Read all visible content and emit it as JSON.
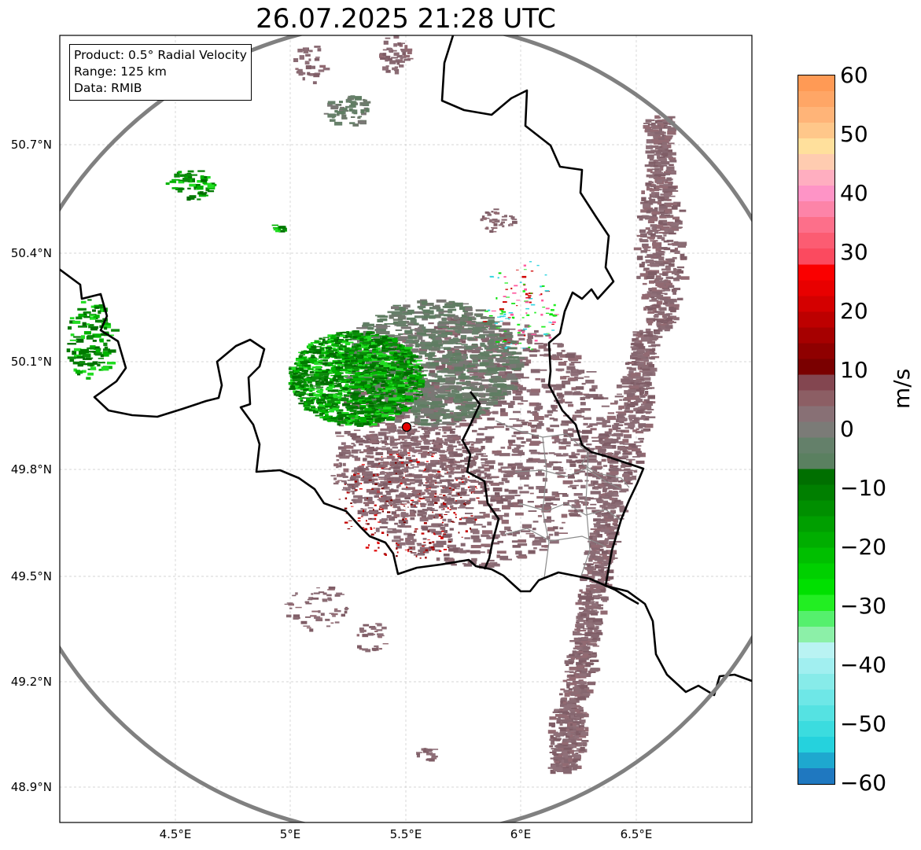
{
  "title": "26.07.2025 21:28 UTC",
  "info_box": {
    "product": "Product: 0.5° Radial Velocity",
    "range": "Range: 125 km",
    "data": "Data: RMIB"
  },
  "map": {
    "lat_ticks": [
      "50.7°N",
      "50.4°N",
      "50.1°N",
      "49.8°N",
      "49.5°N",
      "49.2°N",
      "48.9°N"
    ],
    "lon_ticks": [
      "4.5°E",
      "5°E",
      "5.5°E",
      "6°E",
      "6.5°E"
    ],
    "radar_site": {
      "lat": 49.914,
      "lon": 5.505
    },
    "range_km": 125,
    "ring_color": "#808080",
    "border_color": "#000000",
    "inner_border_color": "#8c8c8c",
    "grid_color": "#c8c8c8",
    "site_color": "#e60000"
  },
  "colorbar": {
    "label": "m/s",
    "min": -60,
    "max": 60,
    "tick_labels": [
      "60",
      "50",
      "40",
      "30",
      "20",
      "10",
      "0",
      "−10",
      "−20",
      "−30",
      "−40",
      "−50",
      "−60"
    ],
    "colors_bottom_to_top": [
      "#1f78c0",
      "#1ea8cf",
      "#25d2dd",
      "#3bdcdf",
      "#55e2e2",
      "#6ee7e7",
      "#87ebe9",
      "#a1eff0",
      "#b9f3f3",
      "#8cf0a8",
      "#55f06d",
      "#22ee22",
      "#00e000",
      "#00d000",
      "#00bf00",
      "#00ae00",
      "#009f00",
      "#008f00",
      "#007f00",
      "#006f00",
      "#5a8060",
      "#64806a",
      "#7b7b77",
      "#887075",
      "#8c5e64",
      "#834650",
      "#7a0000",
      "#8f0000",
      "#a60000",
      "#bd0000",
      "#d40000",
      "#e80000",
      "#fa0000",
      "#fb4a5f",
      "#fc5c72",
      "#fd6f8a",
      "#fd84a8",
      "#fe94c6",
      "#ffaec0",
      "#ffccb0",
      "#ffe09c",
      "#ffc78a",
      "#ffb478",
      "#ffa666",
      "#ff9a55"
    ]
  }
}
